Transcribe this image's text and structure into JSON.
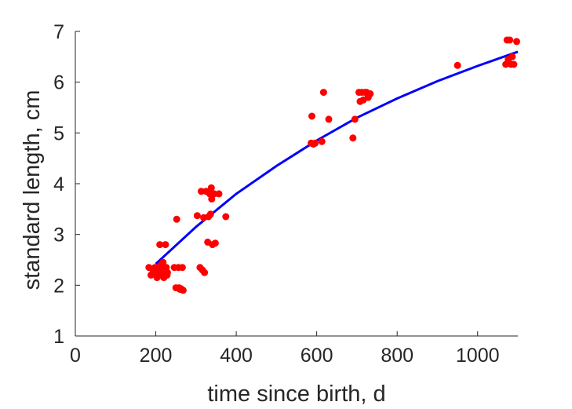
{
  "chart_data": {
    "type": "scatter",
    "title": "",
    "xlabel": "time since birth, d",
    "ylabel": "standard length, cm",
    "xlim": [
      0,
      1100
    ],
    "ylim": [
      1,
      7
    ],
    "xticks": [
      0,
      200,
      400,
      600,
      800,
      1000
    ],
    "yticks": [
      1,
      2,
      3,
      4,
      5,
      6,
      7
    ],
    "grid": false,
    "legend": "none",
    "colors": {
      "points": "#ff0000",
      "fit": "#0000ff",
      "axis": "#262626"
    },
    "series": [
      {
        "kind": "points",
        "x": [
          183,
          188,
          193,
          198,
          200,
          203,
          205,
          208,
          210,
          212,
          213,
          215,
          217,
          218,
          220,
          222,
          224,
          226,
          228,
          229,
          246,
          250,
          252,
          256,
          258,
          260,
          263,
          266,
          268,
          303,
          310,
          313,
          316,
          319,
          321,
          325,
          329,
          331,
          334,
          336,
          338,
          339,
          341,
          345,
          348,
          357,
          374,
          586,
          588,
          592,
          596,
          613,
          617,
          630,
          690,
          695,
          705,
          708,
          712,
          716,
          720,
          724,
          728,
          733,
          950,
          1070,
          1073,
          1076,
          1080,
          1083,
          1086,
          1090,
          1097
        ],
        "y": [
          2.35,
          2.2,
          2.3,
          2.35,
          2.25,
          2.15,
          2.35,
          2.3,
          2.8,
          2.3,
          2.4,
          2.2,
          2.25,
          2.45,
          2.15,
          2.3,
          2.8,
          2.35,
          2.2,
          2.25,
          2.35,
          1.95,
          3.3,
          2.35,
          1.95,
          1.92,
          1.93,
          2.35,
          1.9,
          3.37,
          2.35,
          3.85,
          2.3,
          3.33,
          2.25,
          3.85,
          2.85,
          3.35,
          3.8,
          3.4,
          3.92,
          3.7,
          2.8,
          3.8,
          2.83,
          3.8,
          3.35,
          4.8,
          5.33,
          4.78,
          4.8,
          4.83,
          5.8,
          5.27,
          4.9,
          5.27,
          5.8,
          5.62,
          5.8,
          5.65,
          5.8,
          5.8,
          5.7,
          5.77,
          6.33,
          6.35,
          6.83,
          6.45,
          6.83,
          6.35,
          6.5,
          6.35,
          6.8
        ]
      },
      {
        "kind": "fit",
        "x": [
          200,
          300,
          400,
          500,
          600,
          700,
          800,
          900,
          1000,
          1100
        ],
        "y": [
          2.42,
          3.15,
          3.8,
          4.35,
          4.85,
          5.3,
          5.68,
          6.02,
          6.32,
          6.6
        ]
      }
    ]
  }
}
